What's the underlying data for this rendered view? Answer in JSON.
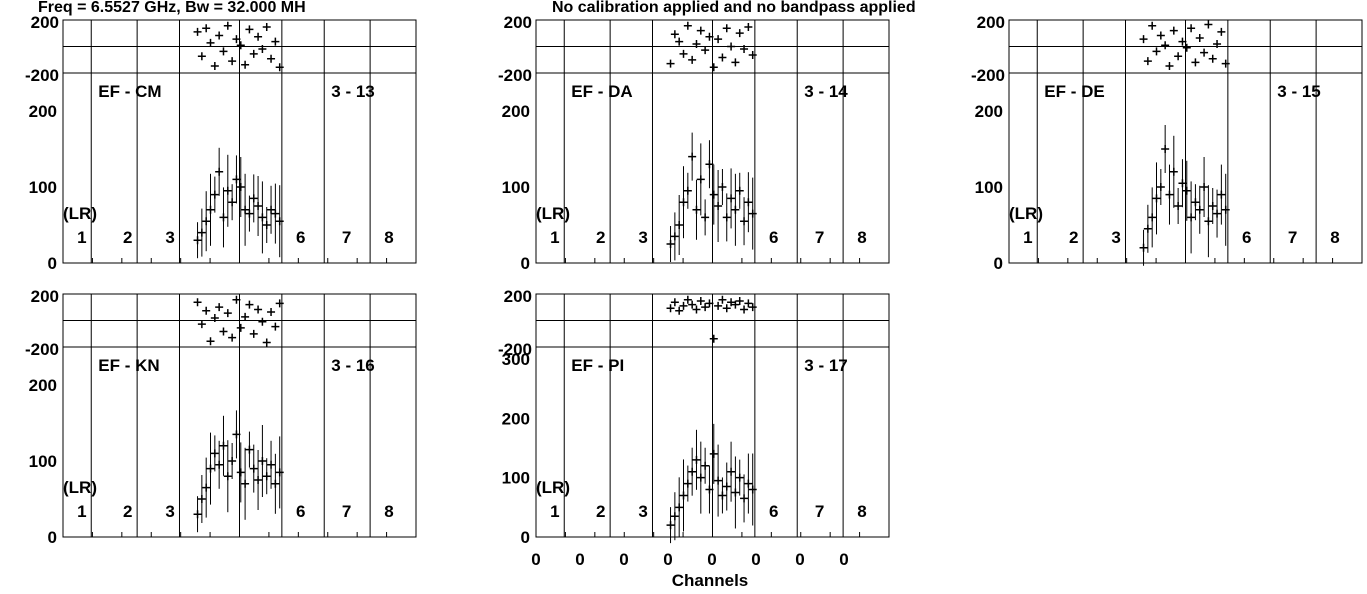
{
  "header": {
    "freq_text": "Freq = 6.5527 GHz, Bw = 32.000 MH",
    "calibration_text": "No calibration applied and no bandpass applied"
  },
  "x_axis": {
    "title": "Channels",
    "tick_labels": [
      "0",
      "0",
      "0",
      "0",
      "0",
      "0",
      "0",
      "0"
    ]
  },
  "chart_data": [
    {
      "type": "scatter",
      "baseline": "EF - CM",
      "id": "3 - 13",
      "polarization": "(LR)",
      "subband_labels": [
        "1",
        "2",
        "3",
        "6",
        "7",
        "8"
      ],
      "phase_panel": {
        "ylim": [
          -200,
          200
        ],
        "tick_labels": [
          "200",
          "-200"
        ]
      },
      "amp_panel": {
        "ylim": [
          0,
          250
        ],
        "tick_labels": [
          "0",
          "100",
          "200"
        ]
      },
      "series": [
        {
          "role": "amplitude",
          "values": [
            30,
            40,
            55,
            70,
            90,
            120,
            60,
            95,
            80,
            110,
            100,
            70,
            65,
            85,
            75,
            60,
            50,
            70,
            65,
            55
          ]
        },
        {
          "role": "phase",
          "values": [
            120,
            -80,
            150,
            30,
            -160,
            90,
            -40,
            170,
            -120,
            60,
            10,
            -150,
            140,
            -60,
            80,
            -20,
            160,
            -100,
            40,
            -170
          ]
        }
      ]
    },
    {
      "type": "scatter",
      "baseline": "EF - DA",
      "id": "3 - 14",
      "polarization": "(LR)",
      "subband_labels": [
        "1",
        "2",
        "3",
        "6",
        "7",
        "8"
      ],
      "phase_panel": {
        "ylim": [
          -200,
          200
        ],
        "tick_labels": [
          "200",
          "-200"
        ]
      },
      "amp_panel": {
        "ylim": [
          0,
          250
        ],
        "tick_labels": [
          "0",
          "100",
          "200"
        ]
      },
      "series": [
        {
          "role": "amplitude",
          "values": [
            25,
            35,
            50,
            80,
            95,
            140,
            70,
            110,
            60,
            130,
            90,
            75,
            100,
            60,
            85,
            70,
            95,
            55,
            80,
            65
          ]
        },
        {
          "role": "phase",
          "values": [
            -140,
            100,
            40,
            -60,
            170,
            -110,
            20,
            130,
            -30,
            80,
            -170,
            60,
            -90,
            150,
            0,
            -130,
            110,
            -20,
            160,
            -70
          ]
        }
      ]
    },
    {
      "type": "scatter",
      "baseline": "EF - DE",
      "id": "3 - 15",
      "polarization": "(LR)",
      "subband_labels": [
        "1",
        "2",
        "3",
        "6",
        "7",
        "8"
      ],
      "phase_panel": {
        "ylim": [
          -200,
          200
        ],
        "tick_labels": [
          "200",
          "-200"
        ]
      },
      "amp_panel": {
        "ylim": [
          0,
          250
        ],
        "tick_labels": [
          "0",
          "100",
          "200"
        ]
      },
      "series": [
        {
          "role": "amplitude",
          "values": [
            20,
            45,
            60,
            85,
            100,
            150,
            90,
            120,
            75,
            105,
            95,
            60,
            80,
            70,
            100,
            55,
            75,
            65,
            90,
            70
          ]
        },
        {
          "role": "phase",
          "values": [
            60,
            -120,
            170,
            -40,
            90,
            10,
            -160,
            130,
            -80,
            40,
            -10,
            150,
            -130,
            70,
            -50,
            180,
            -100,
            20,
            120,
            -140
          ]
        }
      ]
    },
    {
      "type": "scatter",
      "baseline": "EF - KN",
      "id": "3 - 16",
      "polarization": "(LR)",
      "subband_labels": [
        "1",
        "2",
        "3",
        "6",
        "7",
        "8"
      ],
      "phase_panel": {
        "ylim": [
          -200,
          200
        ],
        "tick_labels": [
          "200",
          "-200"
        ]
      },
      "amp_panel": {
        "ylim": [
          0,
          250
        ],
        "tick_labels": [
          "0",
          "100",
          "200"
        ]
      },
      "series": [
        {
          "role": "amplitude",
          "values": [
            30,
            50,
            65,
            90,
            110,
            95,
            120,
            80,
            100,
            135,
            85,
            70,
            115,
            90,
            75,
            100,
            80,
            95,
            70,
            85
          ]
        },
        {
          "role": "phase",
          "values": [
            150,
            -30,
            80,
            -170,
            20,
            110,
            -90,
            60,
            -140,
            170,
            -60,
            30,
            130,
            -110,
            90,
            -10,
            -180,
            70,
            -50,
            140
          ]
        }
      ]
    },
    {
      "type": "scatter",
      "baseline": "EF - PI",
      "id": "3 - 17",
      "polarization": "(LR)",
      "subband_labels": [
        "1",
        "2",
        "3",
        "6",
        "7",
        "8"
      ],
      "phase_panel": {
        "ylim": [
          -200,
          200
        ],
        "tick_labels": [
          "200",
          "-200"
        ]
      },
      "amp_panel": {
        "ylim": [
          0,
          320
        ],
        "tick_labels": [
          "0",
          "100",
          "200",
          "300"
        ]
      },
      "series": [
        {
          "role": "amplitude",
          "values": [
            20,
            35,
            50,
            70,
            90,
            110,
            130,
            100,
            120,
            80,
            140,
            95,
            70,
            85,
            110,
            75,
            100,
            65,
            90,
            80
          ]
        },
        {
          "role": "phase",
          "values": [
            100,
            150,
            80,
            120,
            170,
            130,
            90,
            160,
            110,
            140,
            -150,
            120,
            170,
            100,
            150,
            130,
            160,
            90,
            140,
            110
          ]
        }
      ]
    }
  ]
}
